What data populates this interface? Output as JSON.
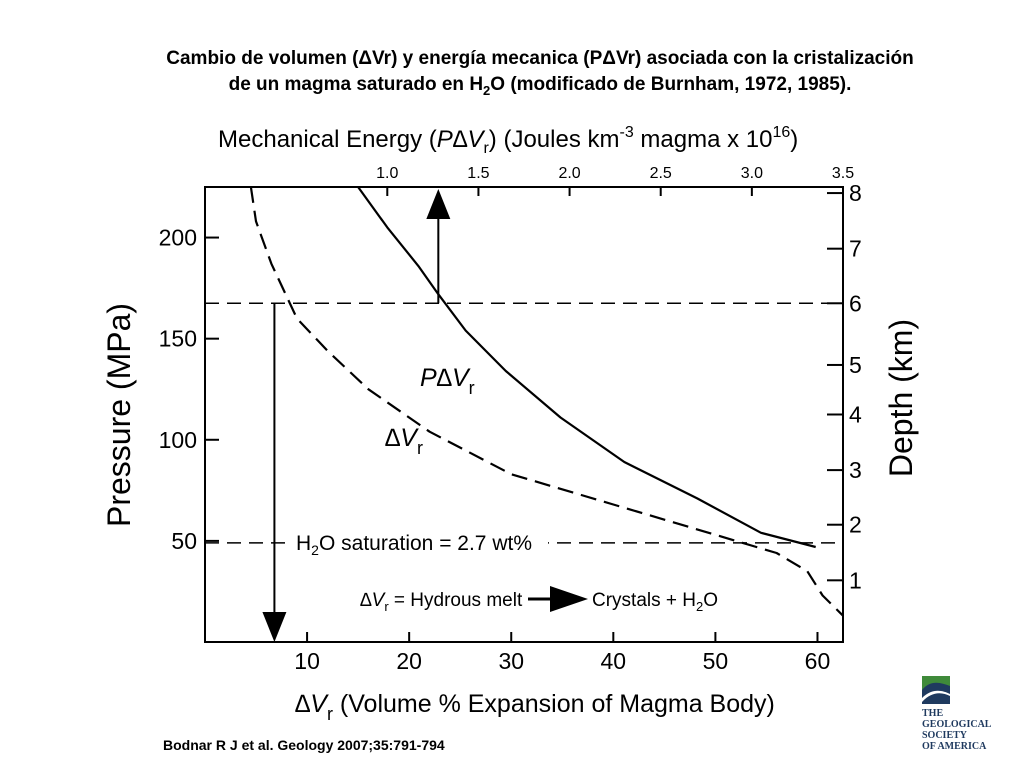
{
  "slide": {
    "title_line1": "Cambio de volumen (ΔVr) y energía mecanica (PΔVr) asociada con la cristalización",
    "title_line2_pre": "de un magma saturado en H",
    "title_line2_sub": "2",
    "title_line2_post": "O (modificado de Burnham, 1972, 1985).",
    "citation": "Bodnar R J et al. Geology 2007;35:791-794",
    "logo": {
      "icon": "gsa-logo-icon",
      "lines": [
        "THE",
        "GEOLOGICAL",
        "SOCIETY",
        "OF AMERICA"
      ],
      "colors": {
        "green": "#3f8a3a",
        "navy": "#1f3a5f"
      }
    }
  },
  "chart_data": {
    "type": "line",
    "top_axis": {
      "label_pre": "Mechanical Energy (",
      "label_var": "P∆V",
      "label_var_sub": "r",
      "label_mid": ") (Joules km",
      "label_sup1": "-3",
      "label_post": " magma x 10",
      "label_sup2": "16",
      "label_end": ")",
      "range": [
        0.0,
        3.5
      ],
      "ticks": [
        "1.0",
        "1.5",
        "2.0",
        "2.5",
        "3.0",
        "3.5"
      ],
      "tick_values": [
        1.0,
        1.5,
        2.0,
        2.5,
        3.0,
        3.5
      ]
    },
    "bottom_axis": {
      "label_sym": "∆V",
      "label_sub": "r",
      "label_rest": " (Volume % Expansion of Magma Body)",
      "range": [
        0,
        62.5
      ],
      "ticks": [
        "10",
        "20",
        "30",
        "40",
        "50",
        "60"
      ],
      "tick_values": [
        10,
        20,
        30,
        40,
        50,
        60
      ]
    },
    "left_axis": {
      "label": "Pressure (MPa)",
      "range": [
        0,
        225
      ],
      "ticks": [
        "50",
        "100",
        "150",
        "200"
      ],
      "tick_values": [
        50,
        100,
        150,
        200
      ]
    },
    "right_axis": {
      "label": "Depth (km)",
      "ticks": [
        "1",
        "2",
        "3",
        "4",
        "5",
        "6",
        "7",
        "8"
      ],
      "tick_values_pressure": [
        30.5,
        58,
        85,
        112.5,
        137,
        167.5,
        194.5,
        222
      ]
    },
    "series": [
      {
        "name_var": "P∆V",
        "name_sub": "r",
        "style": "solid",
        "axis": "top",
        "points": [
          [
            0.84,
            225
          ],
          [
            1.0,
            205
          ],
          [
            1.17,
            186
          ],
          [
            1.28,
            172
          ],
          [
            1.43,
            154
          ],
          [
            1.65,
            134
          ],
          [
            1.95,
            111
          ],
          [
            2.3,
            89
          ],
          [
            2.7,
            71
          ],
          [
            3.05,
            54
          ],
          [
            3.35,
            47
          ]
        ]
      },
      {
        "name_var": "∆V",
        "name_sub": "r",
        "style": "dashed",
        "axis": "bottom",
        "points": [
          [
            4.5,
            225
          ],
          [
            5.0,
            208
          ],
          [
            6.5,
            187
          ],
          [
            9.0,
            160
          ],
          [
            12,
            144
          ],
          [
            16,
            125
          ],
          [
            22,
            104
          ],
          [
            30,
            83
          ],
          [
            40,
            68
          ],
          [
            50,
            53
          ],
          [
            56,
            44
          ],
          [
            59,
            35
          ],
          [
            60.5,
            23
          ],
          [
            62.5,
            13
          ]
        ]
      }
    ],
    "reference_lines": [
      {
        "pressure": 167.5,
        "style": "dashed"
      },
      {
        "pressure": 49,
        "style": "dashed",
        "label_pre": "H",
        "label_sub": "2",
        "label_post": "O saturation = 2.7 wt%"
      }
    ],
    "arrows": [
      {
        "direction": "up",
        "from": {
          "energy": 1.28,
          "pressure": 167.5
        },
        "to_pressure": 224
      },
      {
        "direction": "down",
        "from": {
          "vol": 6.8,
          "pressure": 167.5
        },
        "to_pressure": 0
      }
    ],
    "process_label": {
      "sym": "∆V",
      "sub": "r",
      "left": " = Hydrous melt",
      "right_pre": "Crystals + H",
      "right_sub": "2",
      "right_post": "O"
    }
  }
}
